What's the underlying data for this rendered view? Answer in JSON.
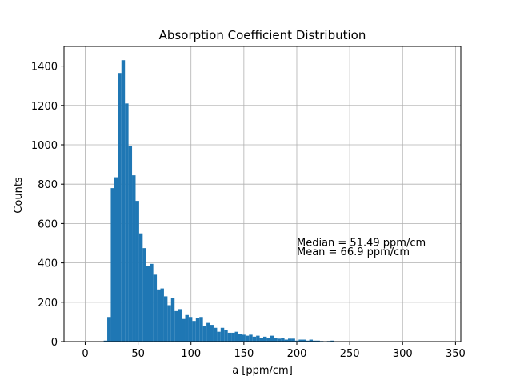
{
  "chart_data": {
    "type": "bar",
    "title": "Absorption Coefficient Distribution",
    "xlabel": "a [ppm/cm]",
    "ylabel": "Counts",
    "xlim": [
      -20,
      355
    ],
    "ylim": [
      0,
      1500
    ],
    "xticks": [
      0,
      50,
      100,
      150,
      200,
      250,
      300,
      350
    ],
    "yticks": [
      0,
      200,
      400,
      600,
      800,
      1000,
      1200,
      1400
    ],
    "grid": true,
    "bar_color": "#1f77b4",
    "bin_start": 17.5,
    "bin_width": 3.35,
    "values": [
      5,
      125,
      780,
      835,
      1365,
      1430,
      1210,
      995,
      845,
      715,
      550,
      475,
      385,
      395,
      340,
      265,
      270,
      230,
      185,
      220,
      155,
      165,
      115,
      135,
      125,
      105,
      120,
      125,
      80,
      95,
      85,
      70,
      50,
      70,
      60,
      45,
      45,
      50,
      40,
      35,
      30,
      35,
      25,
      30,
      20,
      25,
      20,
      30,
      20,
      15,
      20,
      10,
      15,
      15,
      5,
      10,
      10,
      5,
      10,
      5,
      5,
      3,
      2,
      3,
      5,
      1,
      1,
      1,
      0,
      0,
      0,
      0,
      0,
      0,
      0,
      0,
      0,
      0,
      0,
      0,
      0,
      0,
      0,
      0,
      0,
      0,
      0,
      0,
      0,
      0,
      0,
      0,
      0,
      0,
      1,
      0
    ],
    "annotations": [
      {
        "text": "Median = 51.49 ppm/cm",
        "x": 200,
        "y": 485
      },
      {
        "text": "Mean = 66.9 ppm/cm",
        "x": 200,
        "y": 440
      }
    ]
  }
}
